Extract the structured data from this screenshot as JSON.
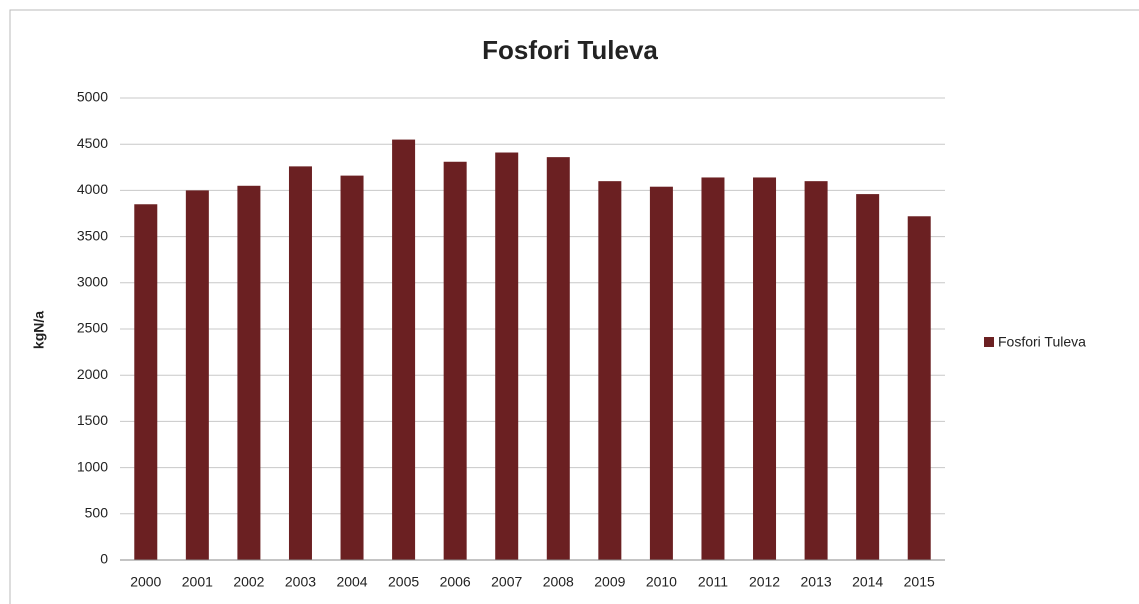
{
  "chart_data": {
    "type": "bar",
    "title": "Fosfori Tuleva",
    "y_label": "kgN/a",
    "categories": [
      "2000",
      "2001",
      "2002",
      "2003",
      "2004",
      "2005",
      "2006",
      "2007",
      "2008",
      "2009",
      "2010",
      "2011",
      "2012",
      "2013",
      "2014",
      "2015"
    ],
    "series": [
      {
        "name": "Fosfori Tuleva",
        "color": "#6b2022",
        "values": [
          3850,
          4000,
          4050,
          4260,
          4160,
          4550,
          4310,
          4410,
          4360,
          4100,
          4040,
          4140,
          4140,
          4100,
          3960,
          3720
        ]
      }
    ],
    "ylim": [
      0,
      5000
    ],
    "yticks": [
      0,
      500,
      1000,
      1500,
      2000,
      2500,
      3000,
      3500,
      4000,
      4500,
      5000
    ],
    "grid": true,
    "legend": "right"
  }
}
